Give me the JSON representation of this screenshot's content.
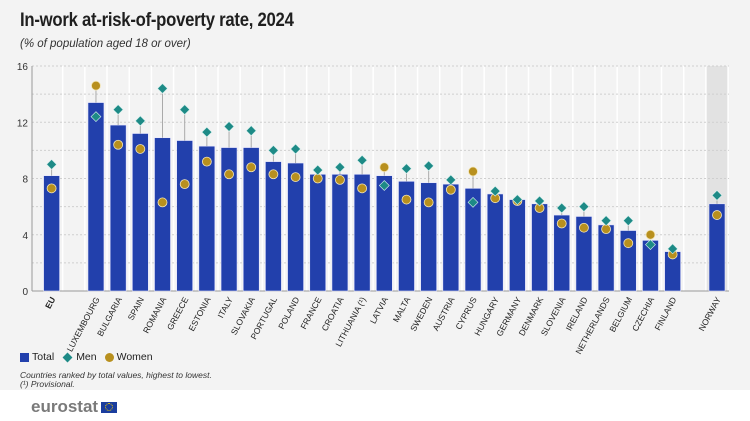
{
  "title": "In-work at-risk-of-poverty rate, 2024",
  "subtitle": "(% of population aged 18 or over)",
  "legend": {
    "total": "Total",
    "men": "Men",
    "women": "Women"
  },
  "notes": [
    "Countries ranked by total values, highest to lowest.",
    "(¹) Provisional."
  ],
  "logo": "eurostat",
  "colors": {
    "total": "#2240ac",
    "men": "#1d8a86",
    "women": "#b8901e"
  },
  "chart_data": {
    "type": "bar",
    "title": "In-work at-risk-of-poverty rate, 2024",
    "ylim": [
      0,
      16
    ],
    "yticks": [
      0,
      4,
      8,
      12,
      16
    ],
    "grid": true,
    "legend_position": "bottom-left",
    "categories": [
      "EU",
      "LUXEMBOURG",
      "BULGARIA",
      "SPAIN",
      "ROMANIA",
      "GREECE",
      "ESTONIA",
      "ITALY",
      "SLOVAKIA",
      "PORTUGAL",
      "POLAND",
      "FRANCE",
      "CROATIA",
      "LITHUANIA (¹)",
      "LATVIA",
      "MALTA",
      "SWEDEN",
      "AUSTRIA",
      "CYPRUS",
      "HUNGARY",
      "GERMANY",
      "DENMARK",
      "SLOVENIA",
      "IRELAND",
      "NETHERLANDS",
      "BELGIUM",
      "CZECHIA",
      "FINLAND",
      "NORWAY"
    ],
    "series": [
      {
        "name": "Total",
        "type": "bar",
        "values": [
          8.2,
          13.4,
          11.8,
          11.2,
          10.9,
          10.7,
          10.3,
          10.2,
          10.2,
          9.2,
          9.1,
          8.3,
          8.3,
          8.3,
          8.2,
          7.8,
          7.7,
          7.6,
          7.3,
          6.9,
          6.5,
          6.2,
          5.4,
          5.3,
          4.7,
          4.3,
          3.6,
          2.8,
          6.2
        ]
      },
      {
        "name": "Men",
        "type": "diamond",
        "values": [
          9.0,
          12.4,
          12.9,
          12.1,
          14.4,
          12.9,
          11.3,
          11.7,
          11.4,
          10.0,
          10.1,
          8.6,
          8.8,
          9.3,
          7.5,
          8.7,
          8.9,
          7.9,
          6.3,
          7.1,
          6.5,
          6.4,
          5.9,
          6.0,
          5.0,
          5.0,
          3.3,
          3.0,
          6.8
        ]
      },
      {
        "name": "Women",
        "type": "circle",
        "values": [
          7.3,
          14.6,
          10.4,
          10.1,
          6.3,
          7.6,
          9.2,
          8.3,
          8.8,
          8.3,
          8.1,
          8.0,
          7.9,
          7.3,
          8.8,
          6.5,
          6.3,
          7.2,
          8.5,
          6.6,
          6.4,
          5.9,
          4.8,
          4.5,
          4.4,
          3.4,
          4.0,
          2.6,
          5.4
        ]
      }
    ]
  }
}
